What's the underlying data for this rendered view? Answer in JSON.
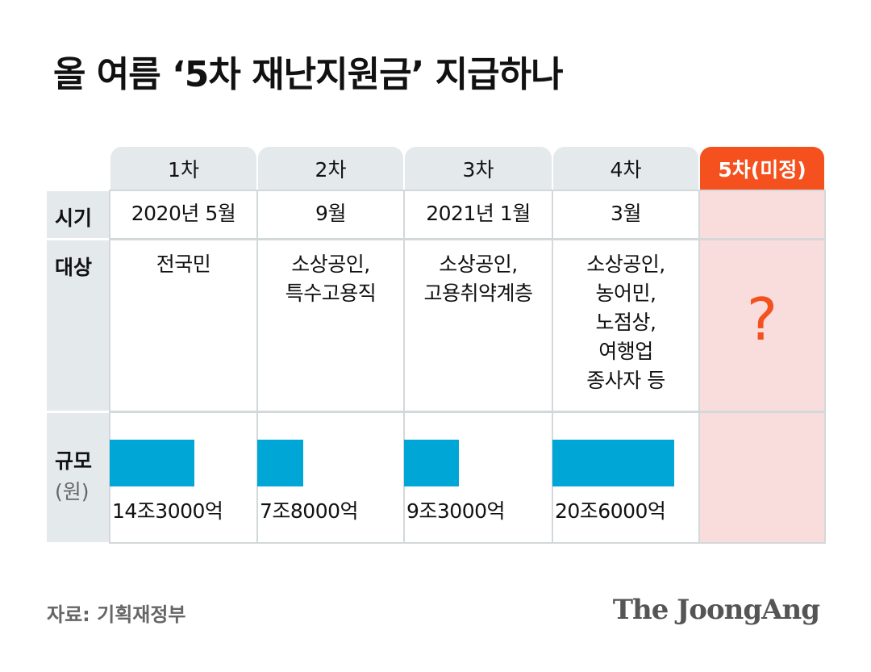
{
  "header": {
    "title": "올 여름 ‘5차 재난지원금’ 지급하나"
  },
  "table": {
    "columns": [
      "1차",
      "2차",
      "3차",
      "4차",
      "5차(미정)"
    ],
    "time": {
      "label": "시기",
      "cells": [
        "2020년 5월",
        "9월",
        "2021년 1월",
        "3월"
      ]
    },
    "target": {
      "label": "대상",
      "cells": [
        [
          "전국민"
        ],
        [
          "소상공인,",
          "특수고용직"
        ],
        [
          "소상공인,",
          "고용취약계층"
        ],
        [
          "소상공인,",
          "농어민,",
          "노점상,",
          "여행업",
          "종사자 등"
        ],
        [
          "?"
        ]
      ]
    },
    "scale": {
      "label": "규모",
      "unit": "(원)",
      "values": [
        143000,
        78000,
        93000,
        206000
      ],
      "value_labels": [
        "14조3000억",
        "7조8000억",
        "9조3000억",
        "20조6000억"
      ],
      "color": "#00a6d6"
    }
  },
  "footer": {
    "source": "자료: 기획재정부",
    "logo": "The JoongAng"
  }
}
